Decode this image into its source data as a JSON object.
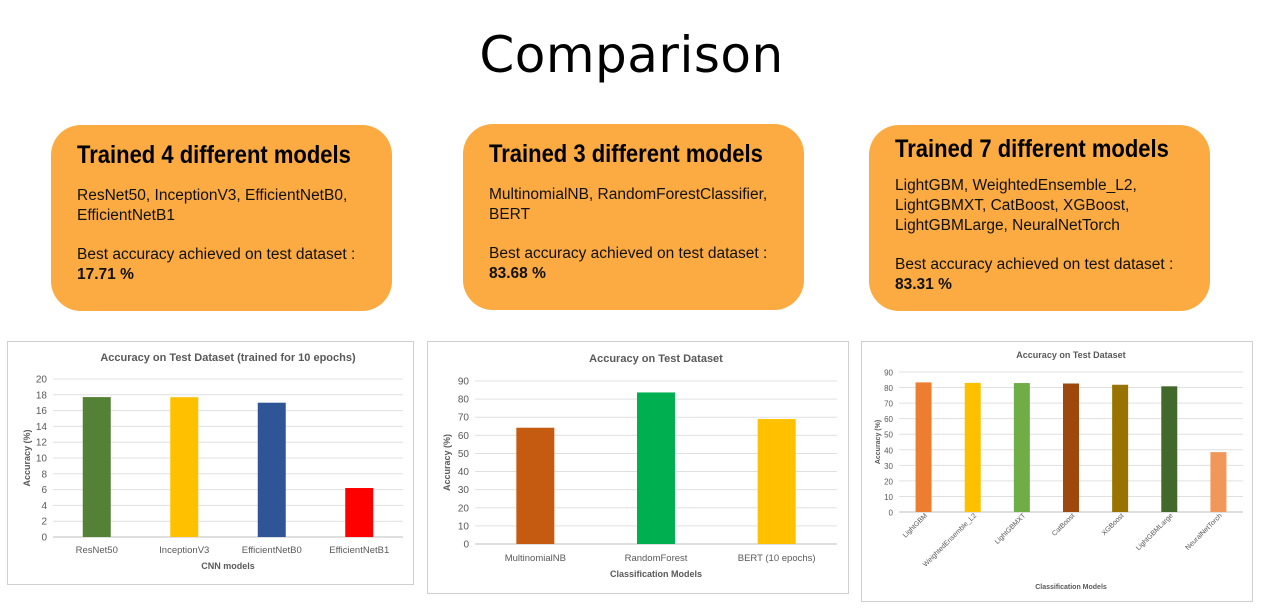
{
  "page_title": "Comparison",
  "cards": [
    {
      "heading": "Trained 4 different models",
      "models": "ResNet50, InceptionV3, EfficientNetB0, EfficientNetB1",
      "accuracy_label": "Best accuracy achieved on test dataset :",
      "accuracy_value": "17.71 %"
    },
    {
      "heading": "Trained 3 different models",
      "models": "MultinomialNB, RandomForestClassifier, BERT",
      "accuracy_label": "Best accuracy achieved on test dataset :",
      "accuracy_value": "83.68 %"
    },
    {
      "heading": "Trained 7 different models",
      "models": "LightGBM, WeightedEnsemble_L2, LightGBMXT, CatBoost, XGBoost, LightGBMLarge, NeuralNetTorch",
      "accuracy_label": "Best accuracy achieved on test dataset :",
      "accuracy_value": "83.31 %"
    }
  ],
  "chart_data": [
    {
      "type": "bar",
      "title": "Accuracy on Test Dataset (trained for 10 epochs)",
      "xlabel": "CNN models",
      "ylabel": "Accuracy (%)",
      "categories": [
        "ResNet50",
        "InceptionV3",
        "EfficientNetB0",
        "EfficientNetB1"
      ],
      "values": [
        17.71,
        17.7,
        17.0,
        6.2
      ],
      "colors": [
        "#538135",
        "#ffc000",
        "#2f5597",
        "#ff0000"
      ],
      "ylim": [
        0,
        20
      ],
      "yticks": [
        0,
        2,
        4,
        6,
        8,
        10,
        12,
        14,
        16,
        18,
        20
      ],
      "grid": true,
      "legend": "none"
    },
    {
      "type": "bar",
      "title": "Accuracy on Test Dataset",
      "xlabel": "Classification Models",
      "ylabel": "Accuracy (%)",
      "categories": [
        "MultinomialNB",
        "RandomForest",
        "BERT (10 epochs)"
      ],
      "values": [
        64.2,
        83.68,
        69.0
      ],
      "colors": [
        "#c55a11",
        "#00b050",
        "#ffc000"
      ],
      "ylim": [
        0,
        90
      ],
      "yticks": [
        0,
        10,
        20,
        30,
        40,
        50,
        60,
        70,
        80,
        90
      ],
      "grid": true,
      "legend": "none"
    },
    {
      "type": "bar",
      "title": "Accuracy on Test Dataset",
      "xlabel": "Classification Models",
      "ylabel": "Accuracy (%)",
      "categories": [
        "LightGBM",
        "WeightedEnsemble_L2",
        "LightGBMXT",
        "CatBoost",
        "XGBoost",
        "LightGBMLarge",
        "NeuralNetTorch"
      ],
      "values": [
        83.31,
        83.0,
        82.9,
        82.6,
        81.8,
        80.8,
        38.5
      ],
      "colors": [
        "#ed7d31",
        "#ffc000",
        "#70ad47",
        "#9e480e",
        "#997300",
        "#43682b",
        "#f1975a"
      ],
      "ylim": [
        0,
        90
      ],
      "yticks": [
        0,
        10,
        20,
        30,
        40,
        50,
        60,
        70,
        80,
        90
      ],
      "grid": true,
      "legend": "none"
    }
  ]
}
